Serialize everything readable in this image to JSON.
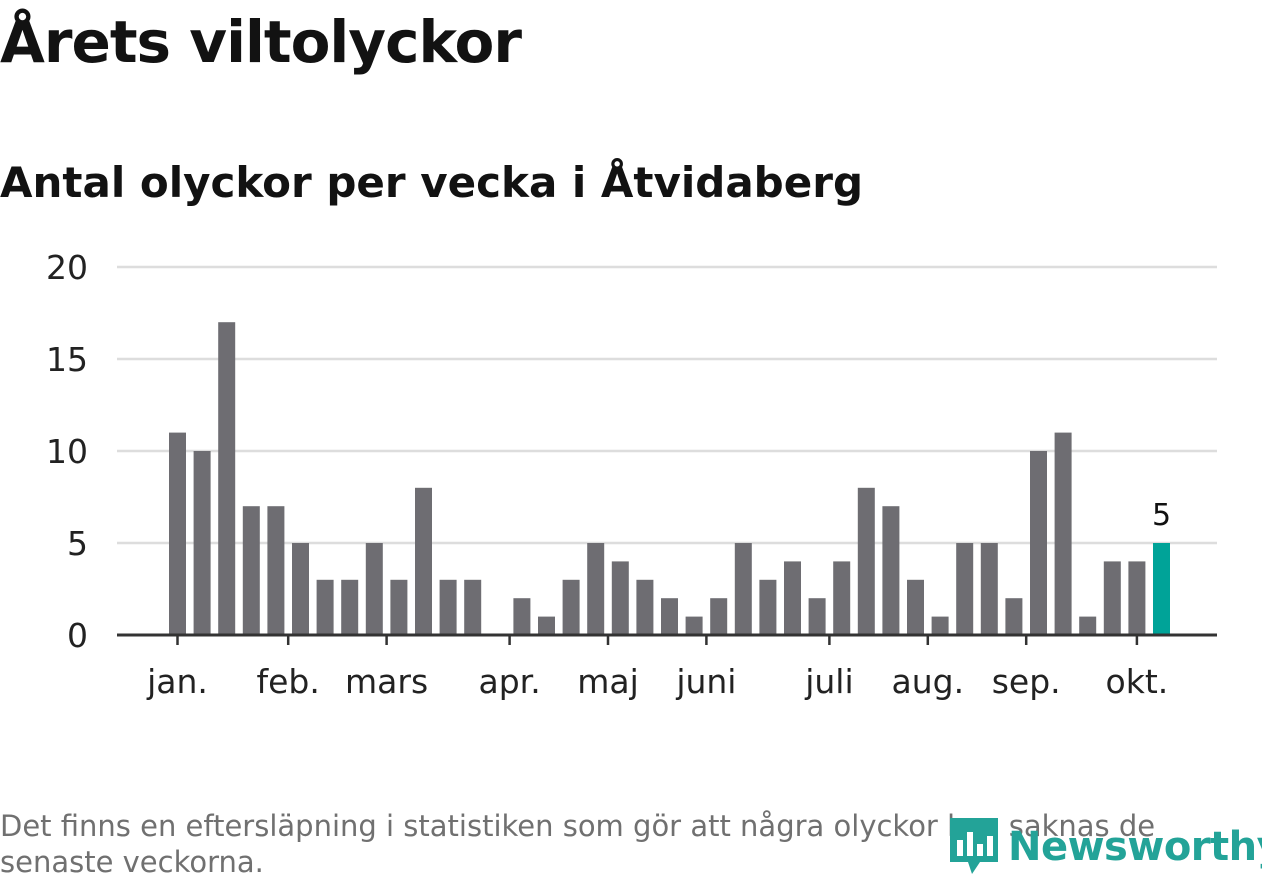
{
  "title": "Årets viltolyckor",
  "subtitle": "Antal olyckor per vecka i Åtvidaberg",
  "footnote": "Det finns en eftersläpning i statistiken som gör att några olyckor kan saknas de senaste veckorna.",
  "logo": {
    "text": "Newsworthy"
  },
  "colors": {
    "bar": "#6e6d72",
    "highlight": "#00a398",
    "grid": "#dddddd",
    "axis": "#333333"
  },
  "chart_data": {
    "type": "bar",
    "title": "Antal olyckor per vecka i Åtvidaberg",
    "xlabel": "",
    "ylabel": "",
    "ylim": [
      0,
      20
    ],
    "yticks": [
      0,
      5,
      10,
      15,
      20
    ],
    "weeks": [
      1,
      2,
      3,
      4,
      5,
      6,
      7,
      8,
      9,
      10,
      11,
      12,
      13,
      14,
      15,
      16,
      17,
      18,
      19,
      20,
      21,
      22,
      23,
      24,
      25,
      26,
      27,
      28,
      29,
      30,
      31,
      32,
      33,
      34,
      35,
      36,
      37,
      38,
      39,
      40,
      41
    ],
    "values": [
      11,
      10,
      17,
      7,
      7,
      5,
      3,
      3,
      5,
      3,
      8,
      3,
      3,
      0,
      2,
      1,
      3,
      5,
      4,
      3,
      2,
      1,
      2,
      5,
      3,
      4,
      2,
      4,
      8,
      7,
      3,
      1,
      5,
      5,
      2,
      10,
      11,
      1,
      4,
      4,
      5
    ],
    "highlight_index": 40,
    "data_labels": [
      {
        "index": 40,
        "text": "5"
      }
    ],
    "month_ticks": [
      {
        "label": "jan.",
        "week": 1
      },
      {
        "label": "feb.",
        "week": 5.5
      },
      {
        "label": "mars",
        "week": 9.5
      },
      {
        "label": "apr.",
        "week": 14.5
      },
      {
        "label": "maj",
        "week": 18.5
      },
      {
        "label": "juni",
        "week": 22.5
      },
      {
        "label": "juli",
        "week": 27.5
      },
      {
        "label": "aug.",
        "week": 31.5
      },
      {
        "label": "sep.",
        "week": 35.5
      },
      {
        "label": "okt.",
        "week": 40
      }
    ]
  }
}
